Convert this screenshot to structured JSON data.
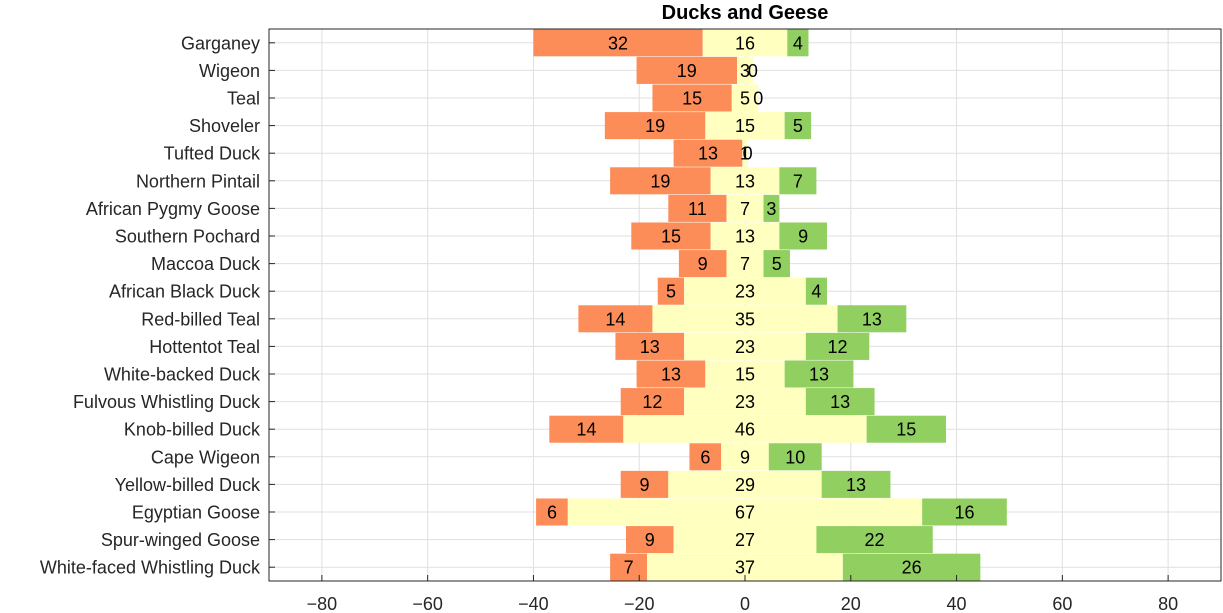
{
  "chart_data": {
    "type": "bar",
    "orientation": "horizontal",
    "stacking": "diverging",
    "title": "Ducks and Geese",
    "xlabel": "",
    "ylabel": "",
    "xlim": [
      -90,
      90
    ],
    "xticks": [
      -80,
      -60,
      -40,
      -20,
      0,
      20,
      40,
      60,
      80
    ],
    "grid": true,
    "legend": "none",
    "categories": [
      "Garganey",
      "Wigeon",
      "Teal",
      "Shoveler",
      "Tufted Duck",
      "Northern Pintail",
      "African Pygmy Goose",
      "Southern Pochard",
      "Maccoa Duck",
      "African Black Duck",
      "Red-billed Teal",
      "Hottentot Teal",
      "White-backed Duck",
      "Fulvous Whistling Duck",
      "Knob-billed Duck",
      "Cape Wigeon",
      "Yellow-billed Duck",
      "Egyptian Goose",
      "Spur-winged Goose",
      "White-faced Whistling Duck"
    ],
    "series": [
      {
        "color": "#fc8d59",
        "side": "negative",
        "values": [
          32,
          19,
          15,
          19,
          13,
          19,
          11,
          15,
          9,
          5,
          14,
          13,
          13,
          12,
          14,
          6,
          9,
          6,
          9,
          7
        ]
      },
      {
        "color": "#ffffbf",
        "side": "center",
        "values": [
          16,
          3,
          5,
          15,
          1,
          13,
          7,
          13,
          7,
          23,
          35,
          23,
          15,
          23,
          46,
          9,
          29,
          67,
          27,
          37
        ]
      },
      {
        "color": "#91cf60",
        "side": "positive",
        "values": [
          4,
          0,
          0,
          5,
          0,
          7,
          3,
          9,
          5,
          4,
          13,
          12,
          13,
          13,
          15,
          10,
          13,
          16,
          22,
          26
        ]
      }
    ]
  }
}
